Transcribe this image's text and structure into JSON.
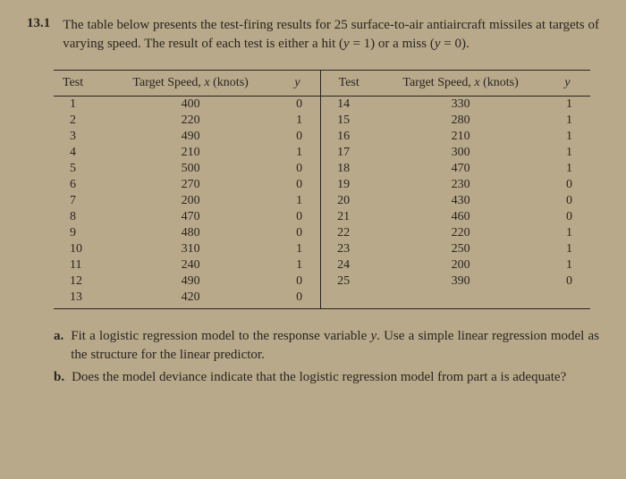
{
  "problem": {
    "number": "13.1",
    "text": "The table below presents the test-firing results for 25 surface-to-air antiaircraft missiles at targets of varying speed. The result of each test is either a hit (y = 1) or a miss (y = 0)."
  },
  "table": {
    "headers": {
      "test": "Test",
      "speed": "Target Speed, x (knots)",
      "y": "y",
      "test2": "Test",
      "speed2": "Target Speed, x (knots)",
      "y2": "y"
    },
    "rows": [
      {
        "test": "1",
        "speed": "400",
        "y": "0",
        "test2": "14",
        "speed2": "330",
        "y2": "1"
      },
      {
        "test": "2",
        "speed": "220",
        "y": "1",
        "test2": "15",
        "speed2": "280",
        "y2": "1"
      },
      {
        "test": "3",
        "speed": "490",
        "y": "0",
        "test2": "16",
        "speed2": "210",
        "y2": "1"
      },
      {
        "test": "4",
        "speed": "210",
        "y": "1",
        "test2": "17",
        "speed2": "300",
        "y2": "1"
      },
      {
        "test": "5",
        "speed": "500",
        "y": "0",
        "test2": "18",
        "speed2": "470",
        "y2": "1"
      },
      {
        "test": "6",
        "speed": "270",
        "y": "0",
        "test2": "19",
        "speed2": "230",
        "y2": "0"
      },
      {
        "test": "7",
        "speed": "200",
        "y": "1",
        "test2": "20",
        "speed2": "430",
        "y2": "0"
      },
      {
        "test": "8",
        "speed": "470",
        "y": "0",
        "test2": "21",
        "speed2": "460",
        "y2": "0"
      },
      {
        "test": "9",
        "speed": "480",
        "y": "0",
        "test2": "22",
        "speed2": "220",
        "y2": "1"
      },
      {
        "test": "10",
        "speed": "310",
        "y": "1",
        "test2": "23",
        "speed2": "250",
        "y2": "1"
      },
      {
        "test": "11",
        "speed": "240",
        "y": "1",
        "test2": "24",
        "speed2": "200",
        "y2": "1"
      },
      {
        "test": "12",
        "speed": "490",
        "y": "0",
        "test2": "25",
        "speed2": "390",
        "y2": "0"
      },
      {
        "test": "13",
        "speed": "420",
        "y": "0",
        "test2": "",
        "speed2": "",
        "y2": ""
      }
    ]
  },
  "questions": {
    "a": {
      "label": "a.",
      "text": "Fit a logistic regression model to the response variable y. Use a simple linear regression model as the structure for the linear predictor."
    },
    "b": {
      "label": "b.",
      "text": "Does the model deviance indicate that the logistic regression model from part a is adequate?"
    }
  }
}
